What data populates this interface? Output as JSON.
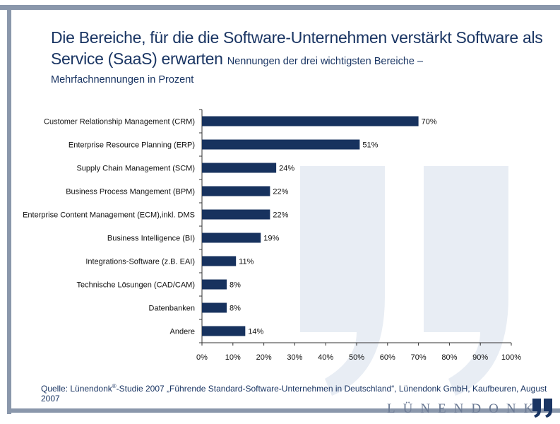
{
  "title": {
    "main": "Die Bereiche, für die die Software-Unternehmen verstärkt Software als Service (SaaS) erwarten",
    "subtitle_part1": "Nennungen der drei wichtigsten Bereiche –",
    "subtitle_part2": "Mehrfachnennungen in Prozent"
  },
  "chart_data": {
    "type": "bar",
    "orientation": "horizontal",
    "categories": [
      "Customer Relationship Management (CRM)",
      "Enterprise Resource Planning (ERP)",
      "Supply Chain Management (SCM)",
      "Business Process Mangement (BPM)",
      "Enterprise Content Management (ECM),inkl. DMS",
      "Business Intelligence (BI)",
      "Integrations-Software (z.B. EAI)",
      "Technische Lösungen (CAD/CAM)",
      "Datenbanken",
      "Andere"
    ],
    "values": [
      70,
      51,
      24,
      22,
      22,
      19,
      11,
      8,
      8,
      14
    ],
    "value_labels": [
      "70%",
      "51%",
      "24%",
      "22%",
      "22%",
      "19%",
      "11%",
      "8%",
      "8%",
      "14%"
    ],
    "xlim": [
      0,
      100
    ],
    "xticks": [
      "0%",
      "10%",
      "20%",
      "30%",
      "40%",
      "50%",
      "60%",
      "70%",
      "80%",
      "90%",
      "100%"
    ],
    "bar_color": "#17325e",
    "grid": false
  },
  "source": {
    "prefix": "Quelle: Lünendonk",
    "registered": "®",
    "rest": "-Studie 2007 „Führende Standard-Software-Unternehmen in Deutschland“, Lünendonk GmbH, Kaufbeuren, August 2007"
  },
  "logo": {
    "text": "LÜNENDONK"
  },
  "colors": {
    "frame": "#8a97ab",
    "title": "#1a3563",
    "watermark": "#e6ebf2"
  }
}
